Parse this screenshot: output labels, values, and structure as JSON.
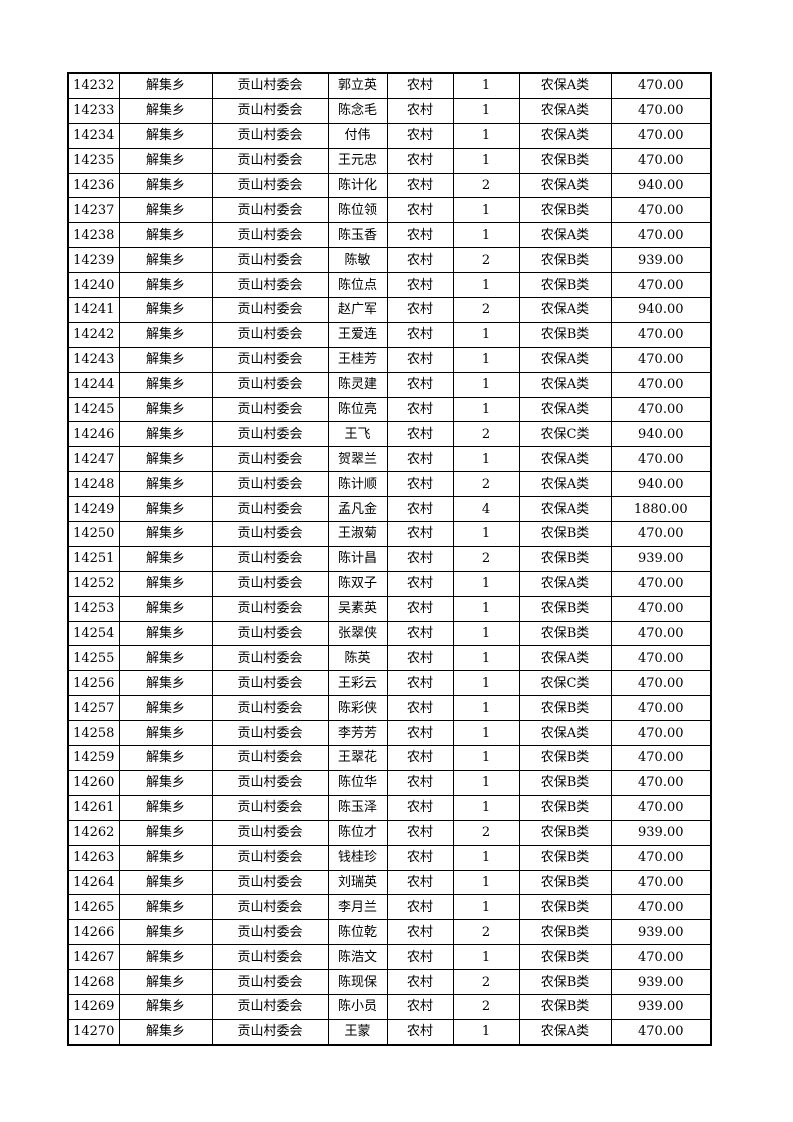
{
  "rows": [
    [
      "14232",
      "解集乡",
      "贡山村委会",
      "郭立英",
      "农村",
      "1",
      "农保A类",
      "470.00"
    ],
    [
      "14233",
      "解集乡",
      "贡山村委会",
      "陈念毛",
      "农村",
      "1",
      "农保A类",
      "470.00"
    ],
    [
      "14234",
      "解集乡",
      "贡山村委会",
      "付伟",
      "农村",
      "1",
      "农保A类",
      "470.00"
    ],
    [
      "14235",
      "解集乡",
      "贡山村委会",
      "王元忠",
      "农村",
      "1",
      "农保B类",
      "470.00"
    ],
    [
      "14236",
      "解集乡",
      "贡山村委会",
      "陈计化",
      "农村",
      "2",
      "农保A类",
      "940.00"
    ],
    [
      "14237",
      "解集乡",
      "贡山村委会",
      "陈位领",
      "农村",
      "1",
      "农保B类",
      "470.00"
    ],
    [
      "14238",
      "解集乡",
      "贡山村委会",
      "陈玉香",
      "农村",
      "1",
      "农保A类",
      "470.00"
    ],
    [
      "14239",
      "解集乡",
      "贡山村委会",
      "陈敏",
      "农村",
      "2",
      "农保B类",
      "939.00"
    ],
    [
      "14240",
      "解集乡",
      "贡山村委会",
      "陈位点",
      "农村",
      "1",
      "农保B类",
      "470.00"
    ],
    [
      "14241",
      "解集乡",
      "贡山村委会",
      "赵广军",
      "农村",
      "2",
      "农保A类",
      "940.00"
    ],
    [
      "14242",
      "解集乡",
      "贡山村委会",
      "王爱连",
      "农村",
      "1",
      "农保B类",
      "470.00"
    ],
    [
      "14243",
      "解集乡",
      "贡山村委会",
      "王桂芳",
      "农村",
      "1",
      "农保A类",
      "470.00"
    ],
    [
      "14244",
      "解集乡",
      "贡山村委会",
      "陈灵建",
      "农村",
      "1",
      "农保A类",
      "470.00"
    ],
    [
      "14245",
      "解集乡",
      "贡山村委会",
      "陈位亮",
      "农村",
      "1",
      "农保A类",
      "470.00"
    ],
    [
      "14246",
      "解集乡",
      "贡山村委会",
      "王飞",
      "农村",
      "2",
      "农保C类",
      "940.00"
    ],
    [
      "14247",
      "解集乡",
      "贡山村委会",
      "贺翠兰",
      "农村",
      "1",
      "农保A类",
      "470.00"
    ],
    [
      "14248",
      "解集乡",
      "贡山村委会",
      "陈计顺",
      "农村",
      "2",
      "农保A类",
      "940.00"
    ],
    [
      "14249",
      "解集乡",
      "贡山村委会",
      "孟凡金",
      "农村",
      "4",
      "农保A类",
      "1880.00"
    ],
    [
      "14250",
      "解集乡",
      "贡山村委会",
      "王淑菊",
      "农村",
      "1",
      "农保B类",
      "470.00"
    ],
    [
      "14251",
      "解集乡",
      "贡山村委会",
      "陈计昌",
      "农村",
      "2",
      "农保B类",
      "939.00"
    ],
    [
      "14252",
      "解集乡",
      "贡山村委会",
      "陈双子",
      "农村",
      "1",
      "农保A类",
      "470.00"
    ],
    [
      "14253",
      "解集乡",
      "贡山村委会",
      "吴素英",
      "农村",
      "1",
      "农保B类",
      "470.00"
    ],
    [
      "14254",
      "解集乡",
      "贡山村委会",
      "张翠侠",
      "农村",
      "1",
      "农保B类",
      "470.00"
    ],
    [
      "14255",
      "解集乡",
      "贡山村委会",
      "陈英",
      "农村",
      "1",
      "农保A类",
      "470.00"
    ],
    [
      "14256",
      "解集乡",
      "贡山村委会",
      "王彩云",
      "农村",
      "1",
      "农保C类",
      "470.00"
    ],
    [
      "14257",
      "解集乡",
      "贡山村委会",
      "陈彩侠",
      "农村",
      "1",
      "农保B类",
      "470.00"
    ],
    [
      "14258",
      "解集乡",
      "贡山村委会",
      "李芳芳",
      "农村",
      "1",
      "农保A类",
      "470.00"
    ],
    [
      "14259",
      "解集乡",
      "贡山村委会",
      "王翠花",
      "农村",
      "1",
      "农保B类",
      "470.00"
    ],
    [
      "14260",
      "解集乡",
      "贡山村委会",
      "陈位华",
      "农村",
      "1",
      "农保B类",
      "470.00"
    ],
    [
      "14261",
      "解集乡",
      "贡山村委会",
      "陈玉泽",
      "农村",
      "1",
      "农保B类",
      "470.00"
    ],
    [
      "14262",
      "解集乡",
      "贡山村委会",
      "陈位才",
      "农村",
      "2",
      "农保B类",
      "939.00"
    ],
    [
      "14263",
      "解集乡",
      "贡山村委会",
      "钱桂珍",
      "农村",
      "1",
      "农保B类",
      "470.00"
    ],
    [
      "14264",
      "解集乡",
      "贡山村委会",
      "刘瑞英",
      "农村",
      "1",
      "农保B类",
      "470.00"
    ],
    [
      "14265",
      "解集乡",
      "贡山村委会",
      "李月兰",
      "农村",
      "1",
      "农保B类",
      "470.00"
    ],
    [
      "14266",
      "解集乡",
      "贡山村委会",
      "陈位乾",
      "农村",
      "2",
      "农保B类",
      "939.00"
    ],
    [
      "14267",
      "解集乡",
      "贡山村委会",
      "陈浩文",
      "农村",
      "1",
      "农保B类",
      "470.00"
    ],
    [
      "14268",
      "解集乡",
      "贡山村委会",
      "陈现保",
      "农村",
      "2",
      "农保B类",
      "939.00"
    ],
    [
      "14269",
      "解集乡",
      "贡山村委会",
      "陈小员",
      "农村",
      "2",
      "农保B类",
      "939.00"
    ],
    [
      "14270",
      "解集乡",
      "贡山村委会",
      "王蒙",
      "农村",
      "1",
      "农保A类",
      "470.00"
    ]
  ]
}
